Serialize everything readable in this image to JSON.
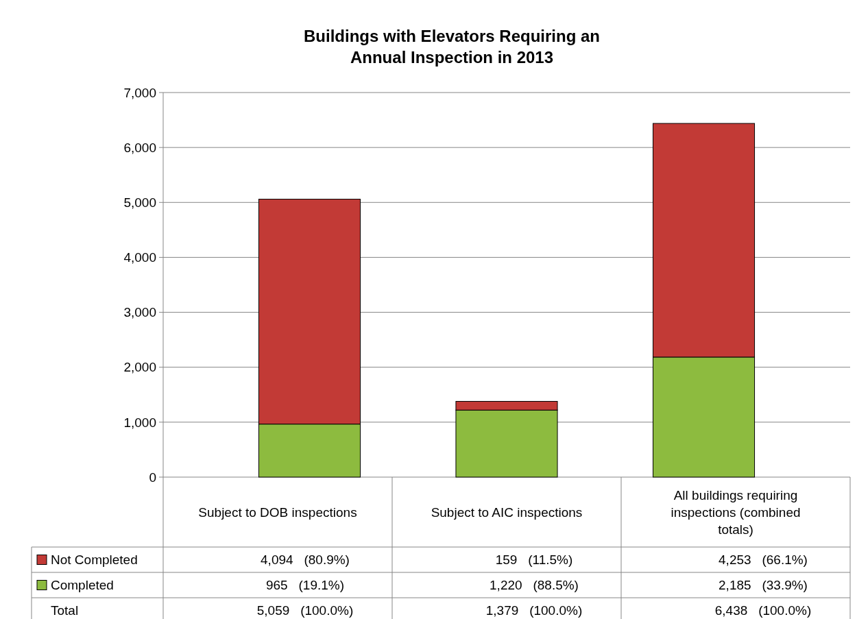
{
  "chart_data": {
    "type": "bar",
    "stacked": true,
    "title": "Buildings with Elevators Requiring an\nAnnual Inspection in 2013",
    "categories": [
      "Subject to DOB inspections",
      "Subject to AIC inspections",
      "All buildings requiring inspections (combined totals)"
    ],
    "series": [
      {
        "name": "Completed",
        "color": "#8dbb3f",
        "values": [
          965,
          1220,
          2185
        ],
        "value_labels": [
          "965   (19.1%)",
          "1,220   (88.5%)",
          "2,185   (33.9%)"
        ]
      },
      {
        "name": "Not Completed",
        "color": "#c23a36",
        "values": [
          4094,
          159,
          4253
        ],
        "value_labels": [
          "4,094   (80.9%)",
          "159   (11.5%)",
          "4,253   (66.1%)"
        ]
      }
    ],
    "annotations": [
      "Total",
      "5,059   (100.0%)",
      "1,379   (100.0%)",
      "6,438   (100.0%)"
    ],
    "ylim": [
      0,
      7000
    ],
    "yticks": [
      {
        "value": 0,
        "label": "0"
      },
      {
        "value": 1000,
        "label": "1,000"
      },
      {
        "value": 2000,
        "label": "2,000"
      },
      {
        "value": 3000,
        "label": "3,000"
      },
      {
        "value": 4000,
        "label": "4,000"
      },
      {
        "value": 5000,
        "label": "5,000"
      },
      {
        "value": 6000,
        "label": "6,000"
      },
      {
        "value": 7000,
        "label": "7,000"
      }
    ],
    "grid": "y",
    "legend": "bottom left"
  }
}
